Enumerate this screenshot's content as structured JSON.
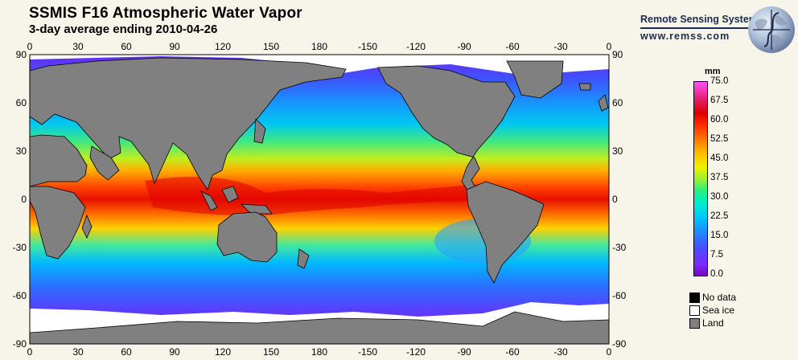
{
  "header": {
    "title": "SSMIS F16 Atmospheric Water Vapor",
    "subtitle": "3-day average ending 2010-04-26"
  },
  "brand": {
    "name": "Remote Sensing Systems",
    "url": "www.remss.com"
  },
  "map": {
    "x_ticks": [
      "0",
      "30",
      "60",
      "90",
      "120",
      "150",
      "180",
      "-150",
      "-120",
      "-90",
      "-60",
      "-30",
      "0"
    ],
    "y_ticks": [
      "90",
      "60",
      "30",
      "0",
      "-30",
      "-60",
      "-90"
    ]
  },
  "colorbar": {
    "unit": "mm",
    "labels": [
      "75.0",
      "67.5",
      "60.0",
      "52.5",
      "45.0",
      "37.5",
      "30.0",
      "22.5",
      "15.0",
      "7.5",
      "0.0"
    ],
    "range": [
      0,
      75
    ]
  },
  "legend": [
    {
      "label": "No data",
      "color": "#000000"
    },
    {
      "label": "Sea ice",
      "color": "#ffffff"
    },
    {
      "label": "Land",
      "color": "#808080"
    }
  ]
}
